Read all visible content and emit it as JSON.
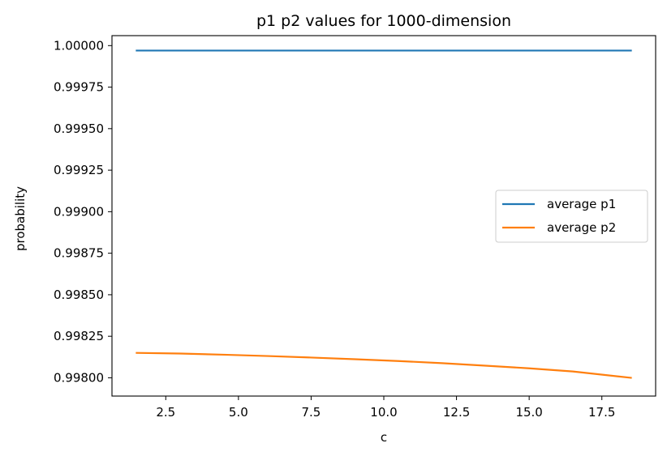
{
  "chart_data": {
    "type": "line",
    "title": "p1 p2 values for 1000-dimension",
    "xlabel": "c",
    "ylabel": "probability",
    "xlim": [
      0.65,
      19.35
    ],
    "ylim": [
      0.99789,
      1.00006
    ],
    "xticks": [
      2.5,
      5.0,
      7.5,
      10.0,
      12.5,
      15.0,
      17.5
    ],
    "xtick_labels": [
      "2.5",
      "5.0",
      "7.5",
      "10.0",
      "12.5",
      "15.0",
      "17.5"
    ],
    "yticks": [
      0.998,
      0.99825,
      0.9985,
      0.99875,
      0.999,
      0.99925,
      0.9995,
      0.99975,
      1.0
    ],
    "ytick_labels": [
      "0.99800",
      "0.99825",
      "0.99850",
      "0.99875",
      "0.99900",
      "0.99925",
      "0.99950",
      "0.99975",
      "1.00000"
    ],
    "grid": false,
    "legend_position": "center-right",
    "series": [
      {
        "name": "average p1",
        "color": "#1f77b4",
        "x": [
          1.5,
          3.0,
          4.5,
          6.0,
          7.5,
          9.0,
          10.5,
          12.0,
          13.5,
          15.0,
          16.5,
          18.5
        ],
        "y": [
          0.99997,
          0.99997,
          0.99997,
          0.99997,
          0.99997,
          0.99997,
          0.99997,
          0.99997,
          0.99997,
          0.99997,
          0.99997,
          0.99997
        ]
      },
      {
        "name": "average p2",
        "color": "#ff7f0e",
        "x": [
          1.5,
          3.0,
          4.5,
          6.0,
          7.5,
          9.0,
          10.5,
          12.0,
          13.5,
          15.0,
          16.5,
          18.5
        ],
        "y": [
          0.99815,
          0.998146,
          0.998139,
          0.998131,
          0.998122,
          0.998112,
          0.998101,
          0.998088,
          0.998073,
          0.998057,
          0.998038,
          0.998
        ]
      }
    ]
  }
}
